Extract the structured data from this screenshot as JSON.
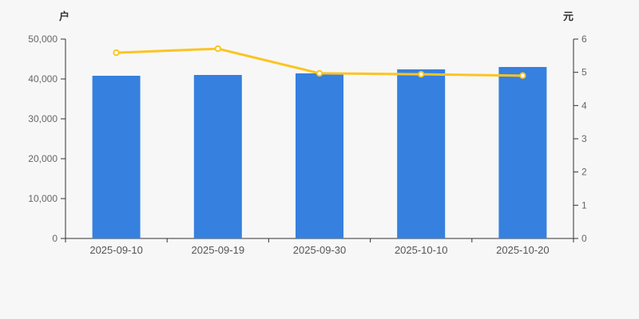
{
  "chart_data": {
    "type": "bar",
    "categories": [
      "2025-09-10",
      "2025-09-19",
      "2025-09-30",
      "2025-10-10",
      "2025-10-20"
    ],
    "series": [
      {
        "name": "holder-count-bars",
        "type": "bar",
        "axis": "left",
        "values": [
          40800,
          41000,
          41400,
          42400,
          43000
        ],
        "color": "#3680df"
      },
      {
        "name": "price-line",
        "type": "line",
        "axis": "right",
        "values": [
          5.59,
          5.71,
          4.97,
          4.94,
          4.9
        ],
        "color": "#fbc423",
        "marker": "hollow-circle",
        "marker_fill": "#ffffff"
      }
    ],
    "left_axis": {
      "label": "户",
      "min": 0,
      "max": 50000,
      "ticks": [
        0,
        10000,
        20000,
        30000,
        40000,
        50000
      ],
      "tick_labels": [
        "0",
        "10,000",
        "20,000",
        "30,000",
        "40,000",
        "50,000"
      ]
    },
    "right_axis": {
      "label": "元",
      "min": 0,
      "max": 6,
      "ticks": [
        0,
        1,
        2,
        3,
        4,
        5,
        6
      ],
      "tick_labels": [
        "0",
        "1",
        "2",
        "3",
        "4",
        "5",
        "6"
      ]
    },
    "title": "",
    "legend": "none",
    "grid": "off",
    "style": {
      "background_color": "#f7f7f7",
      "axis_line_color": "#333333",
      "tick_text_color": "#666666",
      "date_text_color": "#555555"
    }
  }
}
